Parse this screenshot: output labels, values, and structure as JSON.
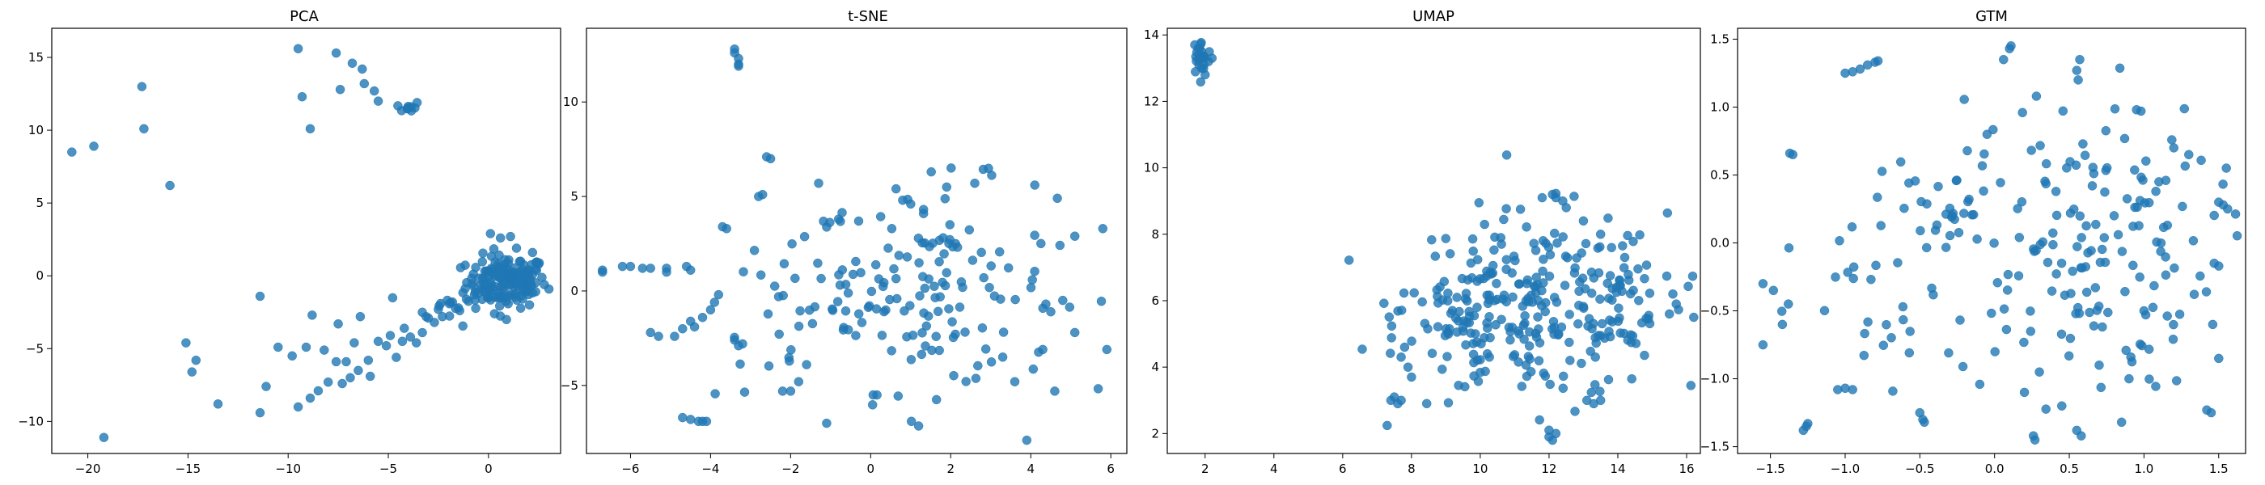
{
  "chart_data": [
    {
      "type": "scatter",
      "title": "PCA",
      "xlim": [
        -21.8,
        3.6
      ],
      "ylim": [
        -12.2,
        17.0
      ],
      "xticks": [
        -20,
        -15,
        -10,
        -5,
        0
      ],
      "yticks": [
        -10,
        -5,
        0,
        5,
        10,
        15
      ],
      "color": "#1f77b4",
      "clusters": [
        {
          "cx": 0.9,
          "cy": -0.4,
          "sx": 1.0,
          "sy": 0.9,
          "n": 160
        },
        {
          "cx": -4.0,
          "cy": 11.6,
          "sx": 0.3,
          "sy": 0.2,
          "n": 10
        },
        {
          "cx": -2.0,
          "cy": -2.2,
          "sx": 0.8,
          "sy": 0.6,
          "n": 12
        }
      ],
      "points": [
        [
          -20.8,
          8.5
        ],
        [
          -19.7,
          8.9
        ],
        [
          -17.3,
          13.0
        ],
        [
          -17.2,
          10.1
        ],
        [
          -15.9,
          6.2
        ],
        [
          -9.5,
          15.6
        ],
        [
          -9.3,
          12.3
        ],
        [
          -8.9,
          10.1
        ],
        [
          -7.6,
          15.3
        ],
        [
          -7.4,
          12.8
        ],
        [
          -6.8,
          14.6
        ],
        [
          -6.3,
          14.2
        ],
        [
          -6.2,
          13.2
        ],
        [
          -5.7,
          12.7
        ],
        [
          -5.5,
          12.0
        ],
        [
          -19.2,
          -11.1
        ],
        [
          -15.1,
          -4.6
        ],
        [
          -14.6,
          -5.8
        ],
        [
          -14.8,
          -6.6
        ],
        [
          -13.5,
          -8.8
        ],
        [
          -11.4,
          -9.4
        ],
        [
          -11.1,
          -7.6
        ],
        [
          -11.4,
          -1.4
        ],
        [
          -10.5,
          -4.9
        ],
        [
          -9.8,
          -5.5
        ],
        [
          -9.5,
          -9.0
        ],
        [
          -9.1,
          -4.9
        ],
        [
          -8.8,
          -2.7
        ],
        [
          -8.9,
          -8.4
        ],
        [
          -8.5,
          -7.9
        ],
        [
          -8.2,
          -5.1
        ],
        [
          -8.0,
          -7.3
        ],
        [
          -7.6,
          -5.9
        ],
        [
          -7.5,
          -3.3
        ],
        [
          -7.1,
          -5.9
        ],
        [
          -7.3,
          -7.4
        ],
        [
          -6.9,
          -7.0
        ],
        [
          -6.7,
          -4.6
        ],
        [
          -6.4,
          -2.8
        ],
        [
          -6.5,
          -6.5
        ],
        [
          -6.0,
          -5.8
        ],
        [
          -5.9,
          -6.9
        ],
        [
          -5.5,
          -4.5
        ],
        [
          -5.1,
          -4.8
        ],
        [
          -4.9,
          -4.1
        ],
        [
          -4.6,
          -5.6
        ],
        [
          -4.3,
          -4.5
        ],
        [
          -4.2,
          -3.6
        ],
        [
          -3.9,
          -4.2
        ],
        [
          -3.6,
          -4.6
        ],
        [
          -3.3,
          -3.9
        ],
        [
          -3.3,
          -2.5
        ],
        [
          -3.0,
          -2.9
        ],
        [
          -2.7,
          -3.2
        ],
        [
          -2.5,
          -2.3
        ],
        [
          -2.3,
          -2.8
        ],
        [
          -1.8,
          -1.8
        ],
        [
          -1.5,
          -2.2
        ],
        [
          -1.1,
          -1.6
        ],
        [
          -0.7,
          -1.3
        ],
        [
          -0.3,
          -0.9
        ],
        [
          0.1,
          2.9
        ],
        [
          0.6,
          2.6
        ],
        [
          1.1,
          2.7
        ],
        [
          1.4,
          1.9
        ],
        [
          0.3,
          -2.6
        ],
        [
          0.9,
          -3.0
        ],
        [
          1.6,
          1.0
        ],
        [
          2.2,
          1.6
        ],
        [
          2.5,
          0.8
        ]
      ]
    },
    {
      "type": "scatter",
      "title": "t-SNE",
      "xlim": [
        -7.1,
        6.4
      ],
      "ylim": [
        -8.6,
        13.9
      ],
      "xticks": [
        -6,
        -4,
        -2,
        0,
        2,
        4,
        6
      ],
      "yticks": [
        -5,
        0,
        5,
        10
      ],
      "color": "#1f77b4",
      "clusters": [
        {
          "cx": 1.6,
          "cy": 0.2,
          "sx": 1.5,
          "sy": 2.7,
          "n": 130
        },
        {
          "cx": -1.5,
          "cy": -1.0,
          "sx": 1.2,
          "sy": 2.4,
          "n": 40
        }
      ],
      "points": [
        [
          -3.4,
          12.8
        ],
        [
          -3.4,
          12.6
        ],
        [
          -3.3,
          12.3
        ],
        [
          -3.3,
          12.0
        ],
        [
          -3.3,
          11.9
        ],
        [
          -6.7,
          1.1
        ],
        [
          -6.7,
          1.0
        ],
        [
          -6.2,
          1.3
        ],
        [
          -6.0,
          1.3
        ],
        [
          -5.7,
          1.2
        ],
        [
          -5.5,
          1.2
        ],
        [
          -5.1,
          1.2
        ],
        [
          -5.1,
          1.0
        ],
        [
          -4.6,
          1.3
        ],
        [
          -4.5,
          1.1
        ],
        [
          -5.5,
          -2.2
        ],
        [
          -5.3,
          -2.4
        ],
        [
          -4.9,
          -2.4
        ],
        [
          -4.7,
          -2.0
        ],
        [
          -4.5,
          -1.6
        ],
        [
          -4.4,
          -1.9
        ],
        [
          -4.2,
          -1.4
        ],
        [
          -4.0,
          -1.0
        ],
        [
          -3.9,
          -0.6
        ],
        [
          -3.8,
          -0.2
        ],
        [
          -4.7,
          -6.7
        ],
        [
          -4.5,
          -6.8
        ],
        [
          -4.3,
          -6.9
        ],
        [
          -4.2,
          -6.9
        ],
        [
          -4.1,
          -6.9
        ],
        [
          -3.7,
          3.4
        ],
        [
          -3.6,
          3.3
        ],
        [
          -3.4,
          -2.6
        ],
        [
          -3.3,
          -2.9
        ],
        [
          -3.2,
          -2.8
        ],
        [
          -2.6,
          7.1
        ],
        [
          -2.5,
          7.0
        ],
        [
          -2.8,
          5.0
        ],
        [
          -2.7,
          5.1
        ],
        [
          -2.3,
          -0.3
        ],
        [
          -2.2,
          -5.3
        ],
        [
          -2.0,
          -5.3
        ],
        [
          -1.8,
          -4.8
        ],
        [
          -1.6,
          -3.9
        ],
        [
          -1.1,
          -7.0
        ],
        [
          -1.3,
          5.7
        ],
        [
          -0.8,
          3.8
        ],
        [
          -0.3,
          3.7
        ],
        [
          0.8,
          4.8
        ],
        [
          1.0,
          4.6
        ],
        [
          1.9,
          5.5
        ],
        [
          2.6,
          5.7
        ],
        [
          3.9,
          -7.9
        ],
        [
          4.1,
          5.6
        ],
        [
          4.6,
          -5.3
        ],
        [
          4.8,
          -0.5
        ],
        [
          5.1,
          -2.2
        ],
        [
          5.1,
          2.9
        ],
        [
          5.8,
          3.3
        ],
        [
          5.9,
          -3.1
        ],
        [
          3.6,
          -4.8
        ],
        [
          3.3,
          -3.5
        ],
        [
          4.3,
          -3.1
        ],
        [
          4.5,
          -1.1
        ]
      ]
    },
    {
      "type": "scatter",
      "title": "UMAP",
      "xlim": [
        0.9,
        16.4
      ],
      "ylim": [
        1.4,
        14.2
      ],
      "xticks": [
        2,
        4,
        6,
        8,
        10,
        12,
        14,
        16
      ],
      "yticks": [
        2,
        4,
        6,
        8,
        10,
        12,
        14
      ],
      "color": "#1f77b4",
      "clusters": [
        {
          "cx": 11.6,
          "cy": 5.8,
          "sx": 1.9,
          "sy": 1.4,
          "n": 230
        },
        {
          "cx": 9.3,
          "cy": 5.2,
          "sx": 0.9,
          "sy": 0.9,
          "n": 45
        },
        {
          "cx": 14.5,
          "cy": 6.0,
          "sx": 0.8,
          "sy": 0.8,
          "n": 30
        },
        {
          "cx": 1.9,
          "cy": 13.3,
          "sx": 0.15,
          "sy": 0.25,
          "n": 20
        }
      ],
      "points": [
        [
          1.7,
          13.7
        ],
        [
          1.8,
          13.6
        ],
        [
          1.9,
          13.5
        ],
        [
          2.1,
          13.2
        ],
        [
          2.2,
          13.3
        ],
        [
          2.0,
          12.8
        ],
        [
          1.9,
          13.0
        ],
        [
          7.4,
          3.0
        ],
        [
          7.5,
          3.1
        ],
        [
          7.6,
          2.9
        ],
        [
          7.7,
          3.0
        ],
        [
          7.7,
          4.3
        ],
        [
          7.8,
          4.6
        ],
        [
          7.9,
          4.0
        ],
        [
          8.0,
          3.7
        ],
        [
          12.0,
          1.9
        ],
        [
          12.1,
          1.8
        ],
        [
          12.2,
          2.0
        ],
        [
          12.0,
          2.1
        ],
        [
          12.1,
          9.2
        ],
        [
          12.2,
          9.1
        ],
        [
          12.4,
          9.0
        ],
        [
          11.8,
          9.1
        ],
        [
          12.5,
          8.8
        ],
        [
          13.0,
          8.4
        ],
        [
          13.5,
          8.0
        ],
        [
          14.2,
          7.3
        ],
        [
          15.6,
          6.2
        ],
        [
          15.7,
          5.9
        ],
        [
          15.5,
          5.6
        ],
        [
          13.1,
          3.0
        ],
        [
          13.3,
          2.9
        ],
        [
          13.5,
          3.0
        ]
      ]
    },
    {
      "type": "scatter",
      "title": "GTM",
      "xlim": [
        -1.72,
        1.68
      ],
      "ylim": [
        -1.55,
        1.58
      ],
      "xticks": [
        -1.5,
        -1.0,
        -0.5,
        0.0,
        0.5,
        1.0,
        1.5
      ],
      "yticks": [
        -1.5,
        -1.0,
        -0.5,
        0.0,
        0.5,
        1.0,
        1.5
      ],
      "color": "#1f77b4",
      "clusters": [
        {
          "cx": 0.55,
          "cy": 0.0,
          "sx": 0.45,
          "sy": 0.55,
          "n": 160
        },
        {
          "cx": -0.35,
          "cy": 0.25,
          "sx": 0.2,
          "sy": 0.2,
          "n": 25
        },
        {
          "cx": -0.75,
          "cy": -0.55,
          "sx": 0.3,
          "sy": 0.35,
          "n": 25
        }
      ],
      "points": [
        [
          -1.37,
          0.66
        ],
        [
          -1.35,
          0.65
        ],
        [
          -1.0,
          1.25
        ],
        [
          -0.95,
          1.26
        ],
        [
          -0.9,
          1.28
        ],
        [
          -0.85,
          1.31
        ],
        [
          -0.8,
          1.33
        ],
        [
          -0.78,
          1.34
        ],
        [
          0.06,
          1.35
        ],
        [
          0.1,
          1.43
        ],
        [
          0.11,
          1.45
        ],
        [
          0.28,
          1.08
        ],
        [
          0.55,
          1.27
        ],
        [
          0.57,
          1.35
        ],
        [
          0.56,
          1.2
        ],
        [
          0.95,
          0.98
        ],
        [
          0.98,
          0.97
        ],
        [
          -1.55,
          -0.3
        ],
        [
          -1.55,
          -0.75
        ],
        [
          -1.48,
          -0.35
        ],
        [
          -1.42,
          -0.6
        ],
        [
          -1.38,
          -0.45
        ],
        [
          -1.28,
          -1.38
        ],
        [
          -1.26,
          -1.35
        ],
        [
          -1.25,
          -1.33
        ],
        [
          -1.05,
          -1.08
        ],
        [
          -1.0,
          -1.07
        ],
        [
          -0.95,
          -1.08
        ],
        [
          -0.5,
          -1.25
        ],
        [
          -0.48,
          -1.3
        ],
        [
          -0.47,
          -1.32
        ],
        [
          0.26,
          -1.42
        ],
        [
          0.27,
          -1.45
        ],
        [
          0.55,
          -1.38
        ],
        [
          0.58,
          -1.42
        ],
        [
          0.85,
          -1.32
        ],
        [
          1.42,
          -1.23
        ],
        [
          1.45,
          -1.25
        ],
        [
          1.47,
          -0.15
        ],
        [
          1.5,
          -0.17
        ],
        [
          1.5,
          0.3
        ],
        [
          1.53,
          0.28
        ],
        [
          1.56,
          0.25
        ],
        [
          1.5,
          -0.85
        ],
        [
          1.46,
          -0.6
        ],
        [
          1.2,
          0.7
        ],
        [
          1.3,
          0.65
        ],
        [
          1.1,
          0.45
        ],
        [
          0.8,
          0.2
        ],
        [
          0.7,
          -0.9
        ],
        [
          0.9,
          -1.0
        ],
        [
          1.0,
          -0.5
        ],
        [
          0.3,
          -0.95
        ],
        [
          0.2,
          -1.1
        ],
        [
          0.45,
          -1.2
        ]
      ]
    }
  ]
}
